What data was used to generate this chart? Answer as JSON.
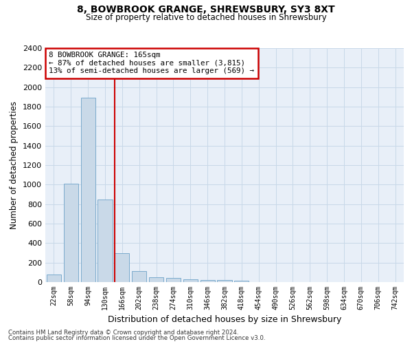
{
  "title1": "8, BOWBROOK GRANGE, SHREWSBURY, SY3 8XT",
  "title2": "Size of property relative to detached houses in Shrewsbury",
  "xlabel": "Distribution of detached houses by size in Shrewsbury",
  "ylabel": "Number of detached properties",
  "categories": [
    "22sqm",
    "58sqm",
    "94sqm",
    "130sqm",
    "166sqm",
    "202sqm",
    "238sqm",
    "274sqm",
    "310sqm",
    "346sqm",
    "382sqm",
    "418sqm",
    "454sqm",
    "490sqm",
    "526sqm",
    "562sqm",
    "598sqm",
    "634sqm",
    "670sqm",
    "706sqm",
    "742sqm"
  ],
  "values": [
    80,
    1010,
    1890,
    850,
    300,
    110,
    50,
    40,
    30,
    20,
    20,
    15,
    0,
    0,
    0,
    0,
    0,
    0,
    0,
    0,
    0
  ],
  "bar_color": "#c9d9e8",
  "bar_edge_color": "#7aaacc",
  "annotation_title": "8 BOWBROOK GRANGE: 165sqm",
  "annotation_line1": "← 87% of detached houses are smaller (3,815)",
  "annotation_line2": "13% of semi-detached houses are larger (569) →",
  "annotation_box_color": "#ffffff",
  "annotation_box_edge": "#cc0000",
  "vline_color": "#cc0000",
  "ylim": [
    0,
    2400
  ],
  "yticks": [
    0,
    200,
    400,
    600,
    800,
    1000,
    1200,
    1400,
    1600,
    1800,
    2000,
    2200,
    2400
  ],
  "grid_color": "#c8d8e8",
  "bg_color": "#e8eff8",
  "footer1": "Contains HM Land Registry data © Crown copyright and database right 2024.",
  "footer2": "Contains public sector information licensed under the Open Government Licence v3.0."
}
